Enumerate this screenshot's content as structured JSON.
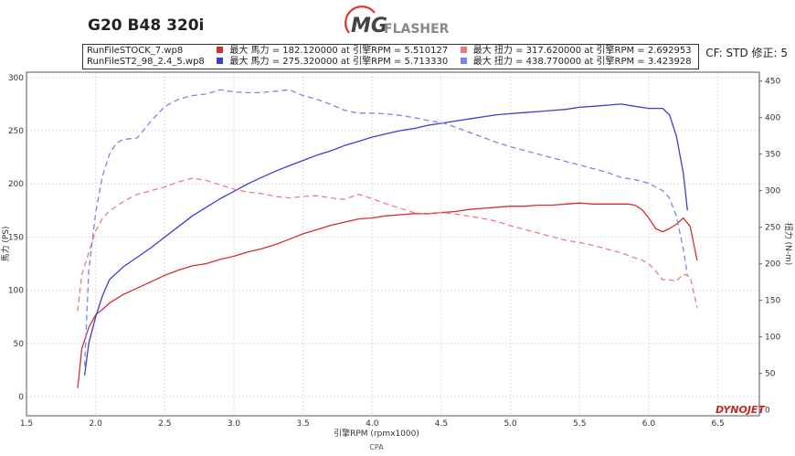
{
  "header": {
    "title": "G20 B48 320i",
    "logo_mg": "MG",
    "logo_flasher": "FLASHER",
    "cf_text": "CF: STD 修正: 5"
  },
  "legend": {
    "rows": [
      {
        "file": "RunFileSTOCK_7.wp8",
        "hp_text": "最大 馬力 =  182.120000 at 引擎RPM = 5.510127",
        "tq_text": "最大 扭力 =  317.620000 at 引擎RPM = 2.692953",
        "hp_color": "#d32f2f",
        "tq_color": "#ef7c7c"
      },
      {
        "file": "RunFileST2_98_2.4_5.wp8",
        "hp_text": "最大 馬力 =  275.320000 at 引擎RPM = 5.713330",
        "tq_text": "最大 扭力 =  438.770000 at 引擎RPM = 3.423928",
        "hp_color": "#3a3fd1",
        "tq_color": "#7c84e8"
      }
    ]
  },
  "watermark": "CPA",
  "brand": "DYNOJET",
  "chart_data": {
    "type": "line",
    "xlabel": "引擎RPM (rpmx1000)",
    "ylabel_left": "馬力 (PS)",
    "ylabel_right": "扭力 (N-m)",
    "xlim": [
      1.5,
      6.8
    ],
    "ylim_left": [
      -18,
      305
    ],
    "ylim_right": [
      -8,
      462
    ],
    "x_ticks": [
      "1.5",
      "2.0",
      "2.5",
      "3.0",
      "3.5",
      "4.0",
      "4.5",
      "5.0",
      "5.5",
      "6.0",
      "6.5"
    ],
    "y_left_ticks": [
      "0",
      "50",
      "100",
      "150",
      "200",
      "250",
      "300"
    ],
    "y_right_ticks": [
      "0",
      "50",
      "100",
      "150",
      "200",
      "250",
      "300",
      "350",
      "400",
      "450"
    ],
    "grid": true,
    "series": [
      {
        "name": "RunFileSTOCK_7.wp8",
        "quantity": "馬力",
        "axis": "left",
        "color": "#d32f2f",
        "dash": false,
        "x": [
          1.87,
          1.9,
          1.95,
          2.0,
          2.05,
          2.1,
          2.2,
          2.3,
          2.4,
          2.5,
          2.6,
          2.7,
          2.8,
          2.9,
          3.0,
          3.1,
          3.2,
          3.3,
          3.4,
          3.5,
          3.6,
          3.7,
          3.8,
          3.9,
          4.0,
          4.1,
          4.2,
          4.3,
          4.4,
          4.5,
          4.6,
          4.7,
          4.8,
          4.9,
          5.0,
          5.1,
          5.2,
          5.3,
          5.4,
          5.5,
          5.6,
          5.7,
          5.8,
          5.85,
          5.9,
          5.95,
          6.0,
          6.05,
          6.1,
          6.15,
          6.2,
          6.25,
          6.3,
          6.35
        ],
        "y": [
          8,
          45,
          65,
          77,
          82,
          88,
          96,
          102,
          108,
          114,
          119,
          123,
          125,
          129,
          132,
          136,
          139,
          143,
          148,
          153,
          157,
          161,
          164,
          167,
          168,
          170,
          171,
          172,
          172,
          173,
          174,
          176,
          177,
          178,
          179,
          179,
          180,
          180,
          181,
          182,
          181,
          181,
          181,
          181,
          180,
          176,
          168,
          158,
          155,
          158,
          162,
          168,
          160,
          128
        ]
      },
      {
        "name": "RunFileST2_98_2.4_5.wp8",
        "quantity": "馬力",
        "axis": "left",
        "color": "#3a3fd1",
        "dash": false,
        "x": [
          1.92,
          1.95,
          2.0,
          2.05,
          2.1,
          2.2,
          2.3,
          2.4,
          2.5,
          2.6,
          2.7,
          2.8,
          2.9,
          3.0,
          3.1,
          3.2,
          3.3,
          3.4,
          3.5,
          3.6,
          3.7,
          3.8,
          3.9,
          4.0,
          4.1,
          4.2,
          4.3,
          4.4,
          4.5,
          4.6,
          4.7,
          4.8,
          4.9,
          5.0,
          5.1,
          5.2,
          5.3,
          5.4,
          5.5,
          5.6,
          5.7,
          5.8,
          5.9,
          6.0,
          6.05,
          6.1,
          6.15,
          6.2,
          6.25,
          6.28
        ],
        "y": [
          20,
          50,
          75,
          95,
          110,
          122,
          131,
          140,
          150,
          160,
          170,
          178,
          186,
          193,
          200,
          206,
          212,
          217,
          222,
          227,
          231,
          236,
          240,
          244,
          247,
          250,
          252,
          255,
          257,
          259,
          261,
          263,
          265,
          266,
          267,
          268,
          269,
          270,
          272,
          273,
          274,
          275,
          273,
          271,
          271,
          271,
          265,
          245,
          210,
          175
        ]
      },
      {
        "name": "RunFileSTOCK_7.wp8",
        "quantity": "扭力",
        "axis": "right",
        "color": "#ef7c7c",
        "dash": true,
        "x": [
          1.87,
          1.9,
          1.95,
          2.0,
          2.05,
          2.1,
          2.2,
          2.3,
          2.4,
          2.5,
          2.6,
          2.7,
          2.8,
          2.9,
          3.0,
          3.1,
          3.2,
          3.3,
          3.4,
          3.5,
          3.6,
          3.7,
          3.8,
          3.9,
          4.0,
          4.1,
          4.2,
          4.3,
          4.4,
          4.5,
          4.6,
          4.7,
          4.8,
          4.9,
          5.0,
          5.1,
          5.2,
          5.3,
          5.4,
          5.5,
          5.6,
          5.7,
          5.8,
          5.9,
          5.95,
          6.0,
          6.05,
          6.1,
          6.15,
          6.2,
          6.25,
          6.3,
          6.35
        ],
        "y": [
          135,
          185,
          215,
          245,
          262,
          272,
          285,
          295,
          300,
          305,
          312,
          317,
          314,
          308,
          302,
          298,
          296,
          292,
          290,
          292,
          293,
          290,
          288,
          295,
          289,
          282,
          276,
          270,
          268,
          270,
          268,
          265,
          262,
          258,
          252,
          247,
          242,
          237,
          232,
          229,
          225,
          220,
          215,
          208,
          205,
          200,
          190,
          178,
          178,
          176,
          186,
          182,
          140
        ]
      },
      {
        "name": "RunFileST2_98_2.4_5.wp8",
        "quantity": "扭力",
        "axis": "right",
        "color": "#7c84e8",
        "dash": true,
        "x": [
          1.92,
          1.95,
          2.0,
          2.05,
          2.1,
          2.15,
          2.2,
          2.3,
          2.4,
          2.5,
          2.6,
          2.7,
          2.8,
          2.9,
          3.0,
          3.1,
          3.2,
          3.3,
          3.4,
          3.5,
          3.6,
          3.7,
          3.8,
          3.9,
          4.0,
          4.1,
          4.2,
          4.3,
          4.4,
          4.5,
          4.6,
          4.7,
          4.8,
          4.9,
          5.0,
          5.1,
          5.2,
          5.3,
          5.4,
          5.5,
          5.6,
          5.7,
          5.8,
          5.9,
          6.0,
          6.05,
          6.1,
          6.15,
          6.2,
          6.25,
          6.28
        ],
        "y": [
          60,
          190,
          270,
          320,
          350,
          365,
          370,
          372,
          395,
          415,
          425,
          430,
          432,
          438,
          435,
          434,
          434,
          436,
          438,
          430,
          425,
          418,
          410,
          406,
          406,
          405,
          403,
          400,
          396,
          393,
          387,
          380,
          373,
          366,
          360,
          355,
          350,
          345,
          340,
          335,
          330,
          325,
          318,
          315,
          310,
          305,
          300,
          290,
          265,
          220,
          185
        ]
      }
    ]
  }
}
